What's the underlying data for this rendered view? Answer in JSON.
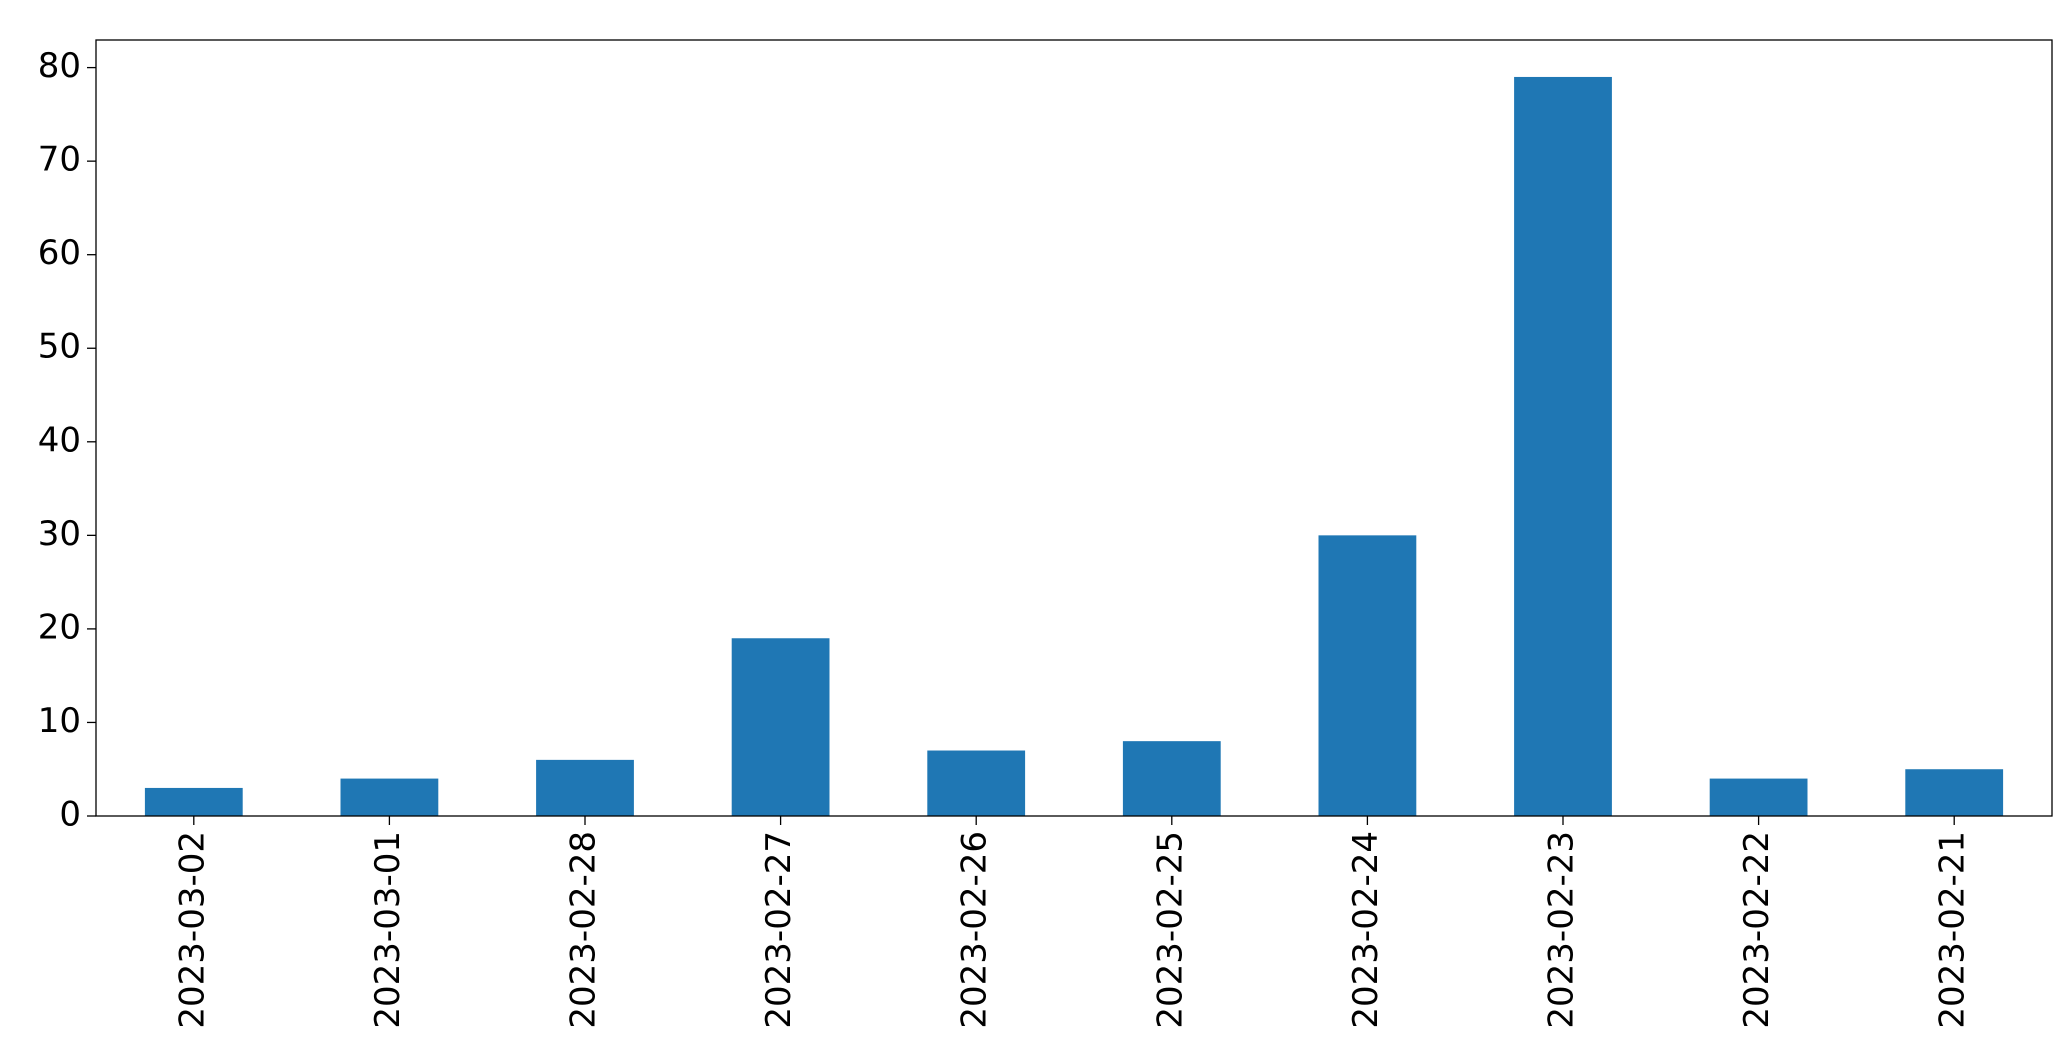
{
  "chart_data": {
    "type": "bar",
    "categories": [
      "2023-03-02",
      "2023-03-01",
      "2023-02-28",
      "2023-02-27",
      "2023-02-26",
      "2023-02-25",
      "2023-02-24",
      "2023-02-23",
      "2023-02-22",
      "2023-02-21"
    ],
    "values": [
      3,
      4,
      6,
      19,
      7,
      8,
      30,
      79,
      4,
      5
    ],
    "color": "#1f77b4",
    "ylim": [
      0,
      82.95
    ],
    "yticks": [
      0,
      10,
      20,
      30,
      40,
      50,
      60,
      70,
      80
    ],
    "grid": false
  }
}
